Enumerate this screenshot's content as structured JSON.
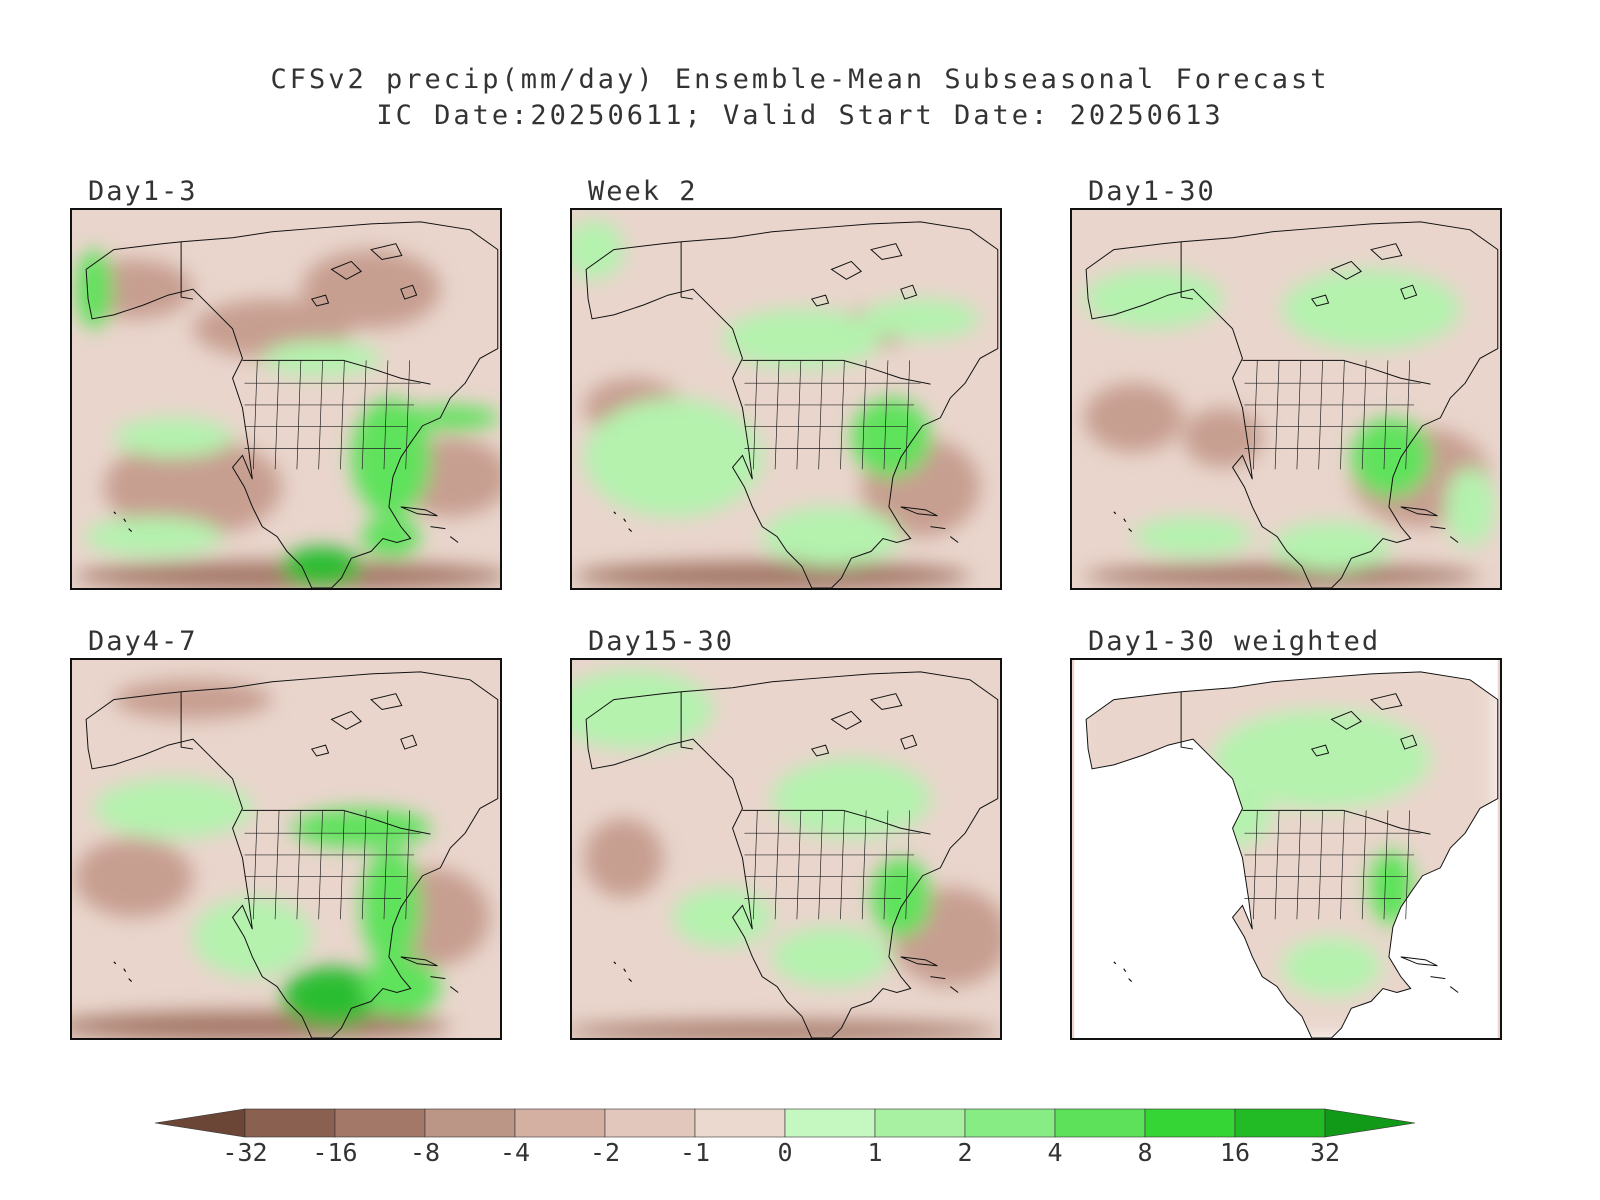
{
  "title_line1": "CFSv2 precip(mm/day) Ensemble-Mean Subseasonal Forecast",
  "title_line2": "IC Date:20250611; Valid Start Date: 20250613",
  "panels": [
    {
      "label": "Day1-3"
    },
    {
      "label": "Week 2"
    },
    {
      "label": "Day1-30"
    },
    {
      "label": "Day4-7"
    },
    {
      "label": "Day15-30"
    },
    {
      "label": "Day1-30 weighted"
    }
  ],
  "colorbar": {
    "labels": [
      "-32",
      "-16",
      "-8",
      "-4",
      "-2",
      "-1",
      "0",
      "1",
      "2",
      "4",
      "8",
      "16",
      "32"
    ],
    "colors": [
      "#6b4535",
      "#8a6050",
      "#a47868",
      "#bb9585",
      "#d4b0a3",
      "#e2c7bc",
      "#ebd8cf",
      "#c5f7c1",
      "#a8f0a2",
      "#88ec85",
      "#5de05a",
      "#35d536",
      "#22bb25",
      "#119a18"
    ]
  },
  "map_colors": {
    "neutral": "#e9d5cc",
    "dry": "#c79f91",
    "very_dry": "#a47868",
    "wet": "#b4f2ae",
    "very_wet": "#5ee25b",
    "extreme_wet": "#2cbd30",
    "masked": "#ffffff"
  }
}
